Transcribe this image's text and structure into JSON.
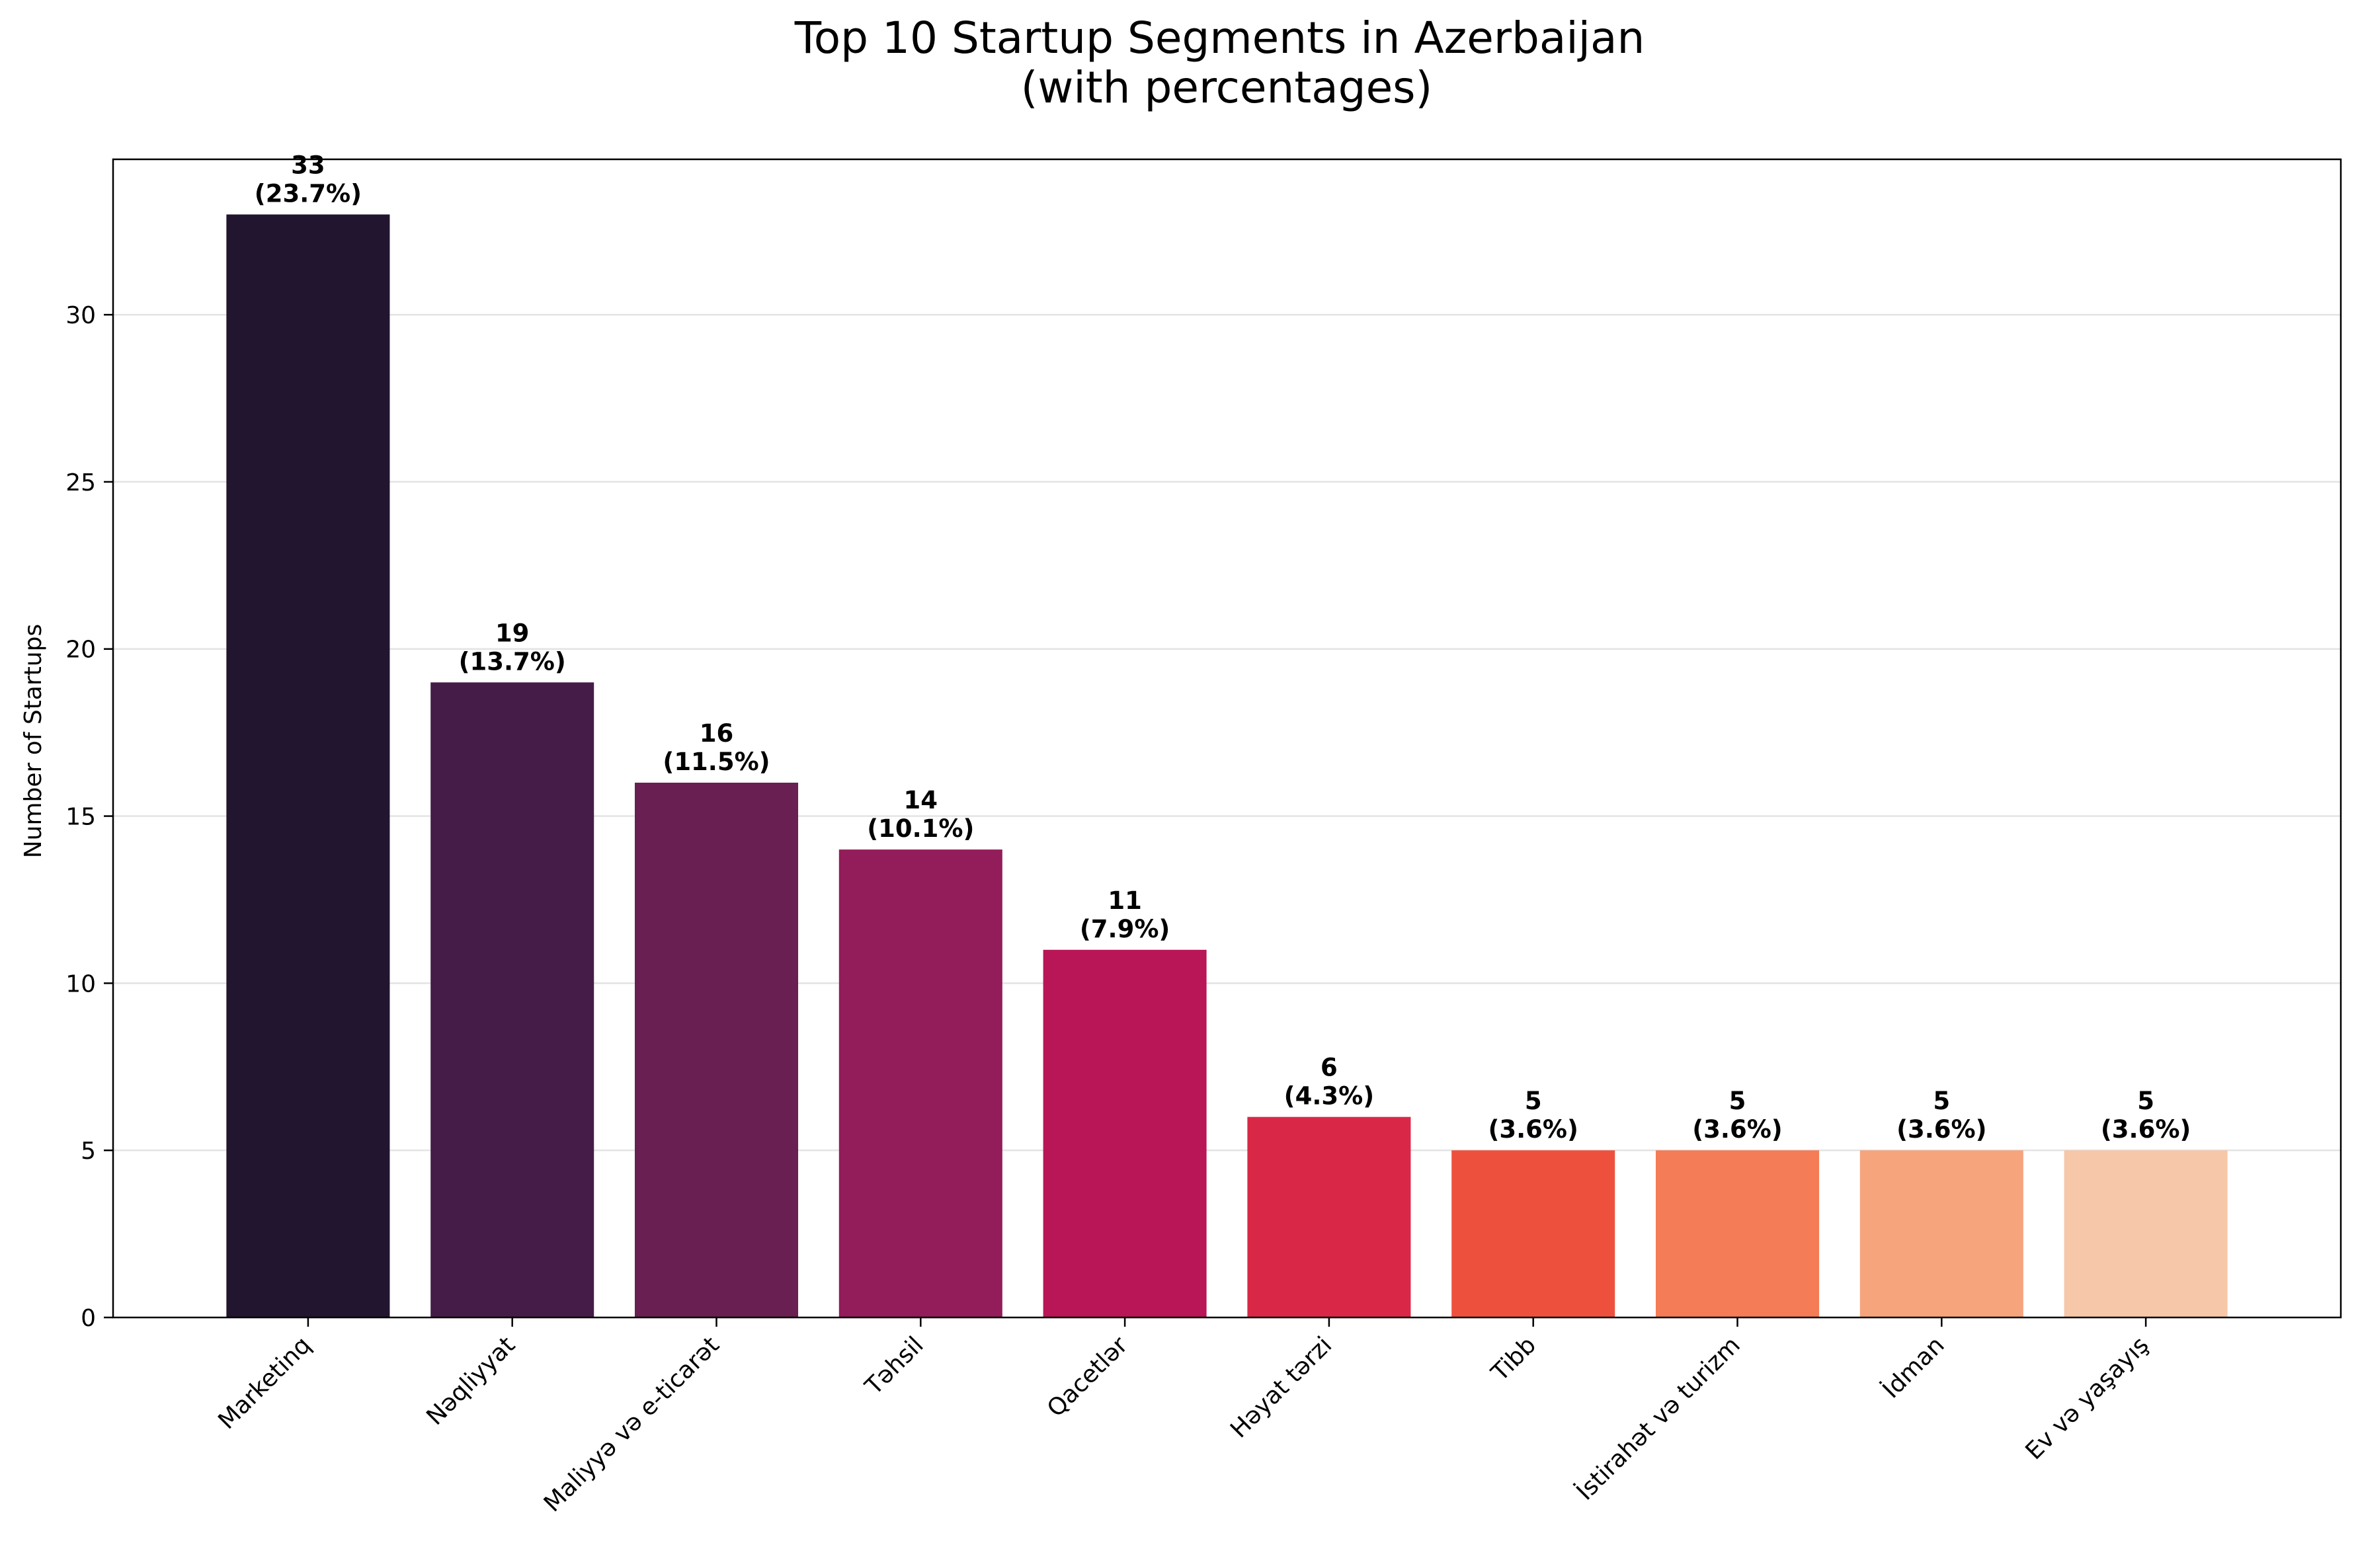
{
  "chart_data": {
    "type": "bar",
    "title_lines": [
      "Top 10 Startup Segments in Azerbaijan",
      "(with percentages)"
    ],
    "xlabel": "",
    "ylabel": "Number of Startups",
    "ylim": [
      0,
      34.65
    ],
    "yticks": [
      0,
      5,
      10,
      15,
      20,
      25,
      30
    ],
    "grid": "y-axis, light gray",
    "legend": "none",
    "categories": [
      "Marketinq",
      "Nəqliyyat",
      "Maliyyə və e-ticarət",
      "Təhsil",
      "Qacetlər",
      "Həyat tərzi",
      "Tibb",
      "İstirahət və turizm",
      "İdman",
      "Ev və yaşayış"
    ],
    "values": [
      33,
      19,
      16,
      14,
      11,
      6,
      5,
      5,
      5,
      5
    ],
    "percentages": [
      "(23.7%)",
      "(13.7%)",
      "(11.5%)",
      "(10.1%)",
      "(7.9%)",
      "(4.3%)",
      "(3.6%)",
      "(3.6%)",
      "(3.6%)",
      "(3.6%)"
    ],
    "colors": [
      "#221530",
      "#451c47",
      "#691f51",
      "#931c5a",
      "#b91657",
      "#d92847",
      "#ed513e",
      "#f47c56",
      "#f6a47c",
      "#f6c7a9"
    ]
  }
}
